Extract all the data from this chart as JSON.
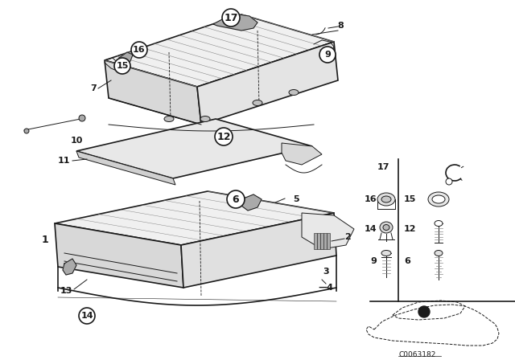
{
  "background_color": "#ffffff",
  "diagram_code": "C0063182",
  "fig_width": 6.4,
  "fig_height": 4.48,
  "dpi": 100,
  "black": "#1a1a1a",
  "gray": "#888888",
  "light_gray": "#cccccc",
  "med_gray": "#aaaaaa"
}
